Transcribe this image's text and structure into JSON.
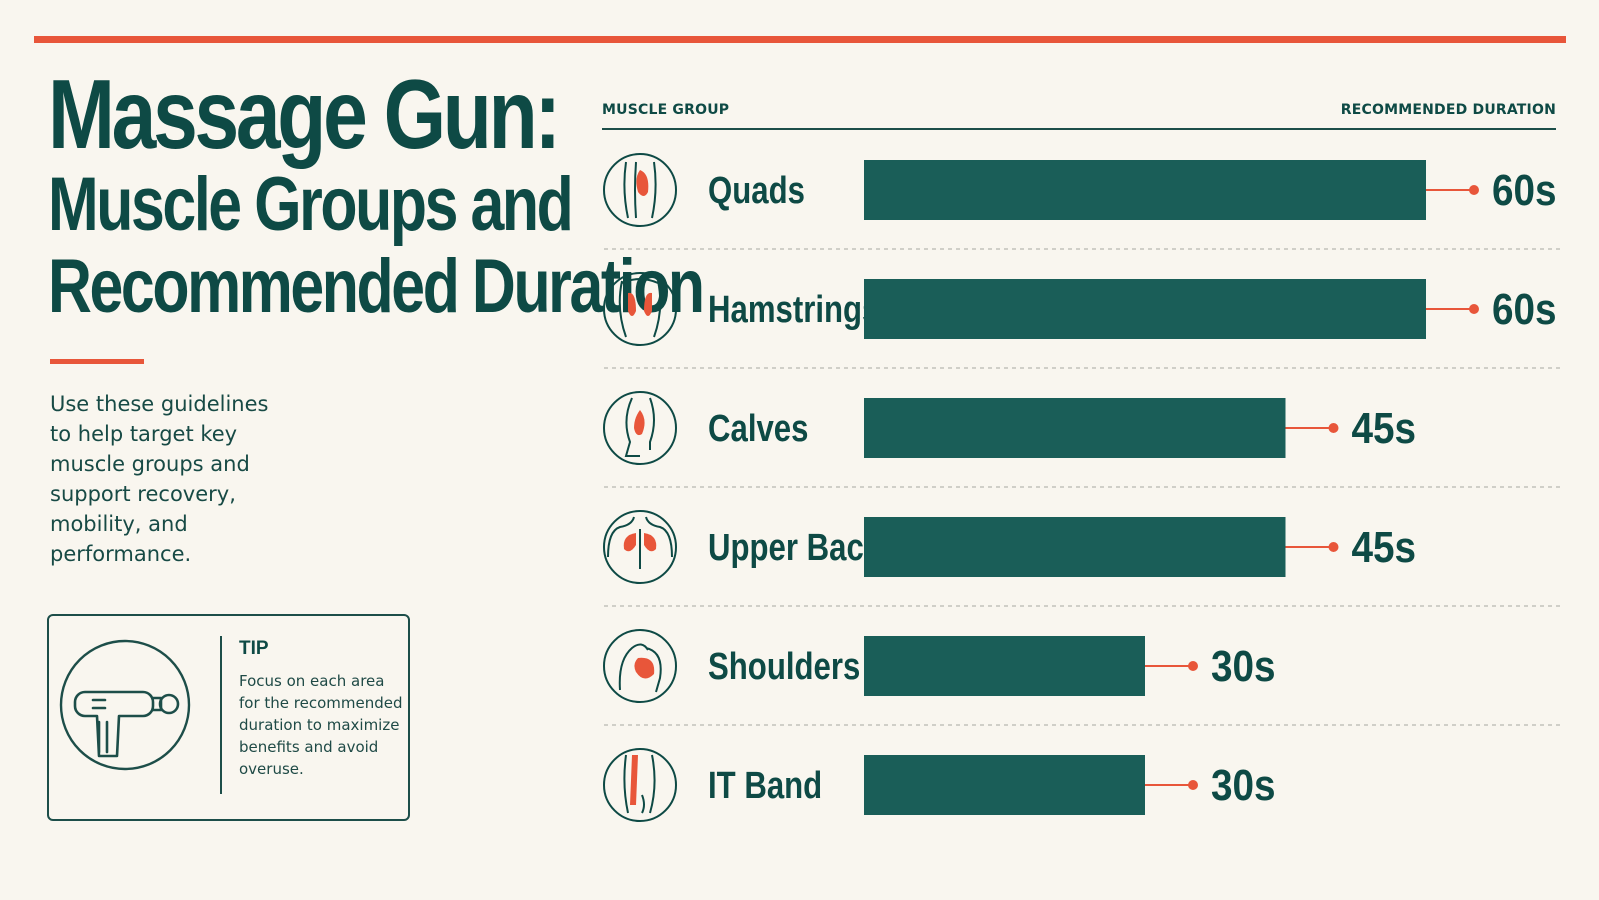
{
  "title": {
    "main": "Massage Gun:",
    "sub_line1": "Muscle Groups and",
    "sub_line2": "Recommended Duration"
  },
  "intro": "Use these guidelines to help target key muscle groups and support recovery, mobility, and performance.",
  "tip": {
    "title": "TIP",
    "text": "Focus on each area for the recommended duration to maximize benefits and avoid overuse.",
    "icon": "massage-gun-icon"
  },
  "colors": {
    "accent": "#e8563a",
    "bar": "#1a5e58",
    "text": "#0e4a45",
    "background": "#f9f6ef"
  },
  "chart_data": {
    "type": "bar",
    "orientation": "horizontal",
    "column_headers": {
      "left": "MUSCLE GROUP",
      "right": "RECOMMENDED DURATION"
    },
    "categories": [
      "Quads",
      "Hamstrings",
      "Calves",
      "Upper Back",
      "Shoulders",
      "IT Band"
    ],
    "values": [
      60,
      60,
      45,
      45,
      30,
      30
    ],
    "value_labels": [
      "60s",
      "60s",
      "45s",
      "45s",
      "30s",
      "30s"
    ],
    "icons": [
      "quads-icon",
      "hamstrings-icon",
      "calves-icon",
      "upper-back-icon",
      "shoulders-icon",
      "it-band-icon"
    ],
    "unit": "s",
    "xlim": [
      0,
      60
    ],
    "legend": "none",
    "grid": false
  }
}
